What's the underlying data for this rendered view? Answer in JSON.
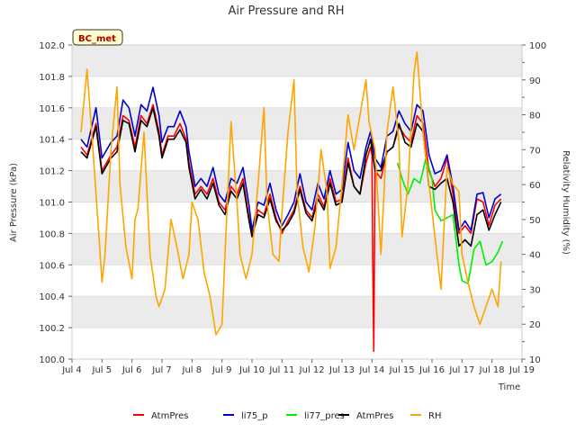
{
  "chart_data": {
    "type": "line",
    "title": "Air Pressure and RH",
    "xlabel": "Time",
    "ylabel": "Air Pressure (kPa)",
    "y2label": "Relativity Humidity (%)",
    "site_label": "BC_met",
    "x_ticks": [
      "Jul 4",
      "Jul 5",
      "Jul 6",
      "Jul 7",
      "Jul 8",
      "Jul 9",
      "Jul 10",
      "Jul 11",
      "Jul 12",
      "Jul 13",
      "Jul 14",
      "Jul 15",
      "Jul 16",
      "Jul 17",
      "Jul 18",
      "Jul 19"
    ],
    "xlim": [
      4,
      19
    ],
    "ylim": [
      100.0,
      102.0
    ],
    "y_ticks": [
      "100.0",
      "100.2",
      "100.4",
      "100.6",
      "100.8",
      "101.0",
      "101.2",
      "101.4",
      "101.6",
      "101.8",
      "102.0"
    ],
    "y2lim": [
      10,
      100
    ],
    "y2_ticks": [
      "10",
      "20",
      "30",
      "40",
      "50",
      "60",
      "70",
      "80",
      "90",
      "100"
    ],
    "grid": true,
    "legend_position": "bottom",
    "colors": {
      "AtmPres_red": "#ff0000",
      "li75_p": "#0000cc",
      "li77_pres": "#00ee00",
      "AtmPres_black": "#000000",
      "RH": "#ffa500",
      "band": "#ebebeb"
    },
    "series": [
      {
        "name": "AtmPres",
        "color": "#ff0000",
        "axis": "left",
        "x": [
          4.3,
          4.5,
          4.8,
          5.0,
          5.3,
          5.5,
          5.7,
          5.9,
          6.1,
          6.3,
          6.5,
          6.7,
          6.9,
          7.0,
          7.2,
          7.4,
          7.6,
          7.8,
          7.9,
          8.1,
          8.3,
          8.5,
          8.7,
          8.9,
          9.1,
          9.3,
          9.5,
          9.7,
          9.9,
          10.0,
          10.2,
          10.4,
          10.6,
          10.8,
          11.0,
          11.2,
          11.4,
          11.6,
          11.8,
          12.0,
          12.2,
          12.4,
          12.6,
          12.8,
          13.0,
          13.2,
          13.4,
          13.6,
          13.8,
          13.95,
          14.0,
          14.03,
          14.06,
          14.1,
          14.3,
          14.5,
          14.7,
          14.9,
          15.1,
          15.3,
          15.5,
          15.7,
          15.9,
          16.1,
          16.3,
          16.5,
          16.7,
          16.9,
          17.1,
          17.3,
          17.5,
          17.7,
          17.9,
          18.1,
          18.3
        ],
        "values": [
          101.35,
          101.3,
          101.5,
          101.2,
          101.3,
          101.35,
          101.55,
          101.52,
          101.35,
          101.55,
          101.5,
          101.62,
          101.45,
          101.3,
          101.42,
          101.42,
          101.5,
          101.4,
          101.25,
          101.05,
          101.1,
          101.05,
          101.15,
          101.0,
          100.95,
          101.1,
          101.05,
          101.15,
          100.9,
          100.8,
          100.95,
          100.92,
          101.05,
          100.9,
          100.8,
          100.88,
          100.95,
          101.1,
          100.95,
          100.9,
          101.05,
          100.97,
          101.15,
          101.0,
          101.02,
          101.28,
          101.1,
          101.05,
          101.25,
          101.35,
          101.3,
          100.55,
          100.05,
          101.2,
          101.15,
          101.32,
          101.35,
          101.48,
          101.42,
          101.38,
          101.55,
          101.5,
          101.2,
          101.1,
          101.15,
          101.28,
          101.05,
          100.8,
          100.85,
          100.8,
          101.02,
          101.0,
          100.85,
          100.98,
          101.02
        ]
      },
      {
        "name": "li75_p",
        "color": "#0000cc",
        "axis": "left",
        "x": [
          4.3,
          4.5,
          4.8,
          5.0,
          5.3,
          5.5,
          5.7,
          5.9,
          6.1,
          6.3,
          6.5,
          6.7,
          6.9,
          7.0,
          7.2,
          7.4,
          7.6,
          7.8,
          7.9,
          8.1,
          8.3,
          8.5,
          8.7,
          8.9,
          9.1,
          9.3,
          9.5,
          9.7,
          9.9,
          10.0,
          10.2,
          10.4,
          10.6,
          10.8,
          11.0,
          11.2,
          11.4,
          11.6,
          11.8,
          12.0,
          12.2,
          12.4,
          12.6,
          12.8,
          13.0,
          13.2,
          13.4,
          13.6,
          13.8,
          13.95,
          14.1,
          14.3,
          14.5,
          14.7,
          14.9,
          15.1,
          15.3,
          15.5,
          15.7,
          15.9,
          16.1,
          16.3,
          16.5,
          16.7,
          16.9,
          17.1,
          17.3,
          17.5,
          17.7,
          17.9,
          18.1,
          18.3
        ],
        "values": [
          101.4,
          101.35,
          101.6,
          101.28,
          101.38,
          101.42,
          101.65,
          101.6,
          101.42,
          101.62,
          101.58,
          101.73,
          101.55,
          101.38,
          101.48,
          101.48,
          101.58,
          101.48,
          101.32,
          101.1,
          101.15,
          101.1,
          101.22,
          101.05,
          101.0,
          101.15,
          101.12,
          101.22,
          100.98,
          100.82,
          101.0,
          100.98,
          101.12,
          100.95,
          100.85,
          100.92,
          101.0,
          101.18,
          101.0,
          100.95,
          101.12,
          101.02,
          101.2,
          101.05,
          101.08,
          101.38,
          101.2,
          101.15,
          101.35,
          101.45,
          101.28,
          101.22,
          101.42,
          101.45,
          101.58,
          101.5,
          101.45,
          101.62,
          101.58,
          101.3,
          101.18,
          101.2,
          101.3,
          101.1,
          100.82,
          100.88,
          100.82,
          101.05,
          101.06,
          100.9,
          101.02,
          101.05
        ]
      },
      {
        "name": "li77_pres",
        "color": "#00ee00",
        "axis": "left",
        "x": [
          14.85,
          15.0,
          15.2,
          15.4,
          15.6,
          15.8,
          16.0,
          16.1,
          16.3,
          16.5,
          16.7,
          16.9,
          17.0,
          17.2,
          17.4,
          17.6,
          17.8,
          18.0,
          18.2,
          18.35
        ],
        "values": [
          101.25,
          101.15,
          101.05,
          101.15,
          101.12,
          101.28,
          101.15,
          100.95,
          100.88,
          100.9,
          100.92,
          100.6,
          100.5,
          100.48,
          100.7,
          100.75,
          100.6,
          100.62,
          100.68,
          100.75
        ]
      },
      {
        "name": "AtmPres",
        "color": "#000000",
        "axis": "left",
        "x": [
          4.3,
          4.5,
          4.8,
          5.0,
          5.3,
          5.5,
          5.7,
          5.9,
          6.1,
          6.3,
          6.5,
          6.7,
          6.9,
          7.0,
          7.2,
          7.4,
          7.6,
          7.8,
          7.9,
          8.1,
          8.3,
          8.5,
          8.7,
          8.9,
          9.1,
          9.3,
          9.5,
          9.7,
          9.9,
          10.0,
          10.2,
          10.4,
          10.6,
          10.8,
          11.0,
          11.2,
          11.4,
          11.6,
          11.8,
          12.0,
          12.2,
          12.4,
          12.6,
          12.8,
          13.0,
          13.2,
          13.4,
          13.6,
          13.8,
          13.95,
          14.1,
          14.3,
          14.5,
          14.7,
          14.9,
          15.1,
          15.3,
          15.5,
          15.7,
          15.9,
          16.1,
          16.3,
          16.5,
          16.7,
          16.9,
          17.1,
          17.3,
          17.5,
          17.7,
          17.9,
          18.1,
          18.3
        ],
        "values": [
          101.32,
          101.28,
          101.48,
          101.18,
          101.28,
          101.32,
          101.52,
          101.5,
          101.32,
          101.52,
          101.48,
          101.6,
          101.42,
          101.28,
          101.4,
          101.4,
          101.46,
          101.38,
          101.22,
          101.02,
          101.08,
          101.02,
          101.12,
          100.98,
          100.92,
          101.07,
          101.02,
          101.12,
          100.88,
          100.78,
          100.92,
          100.9,
          101.02,
          100.88,
          100.82,
          100.86,
          100.93,
          101.08,
          100.93,
          100.88,
          101.02,
          100.95,
          101.12,
          100.98,
          101.0,
          101.25,
          101.1,
          101.05,
          101.3,
          101.4,
          101.2,
          101.2,
          101.32,
          101.35,
          101.5,
          101.38,
          101.35,
          101.5,
          101.45,
          101.1,
          101.08,
          101.12,
          101.15,
          101.0,
          100.72,
          100.76,
          100.72,
          100.92,
          100.95,
          100.82,
          100.92,
          101.0
        ]
      },
      {
        "name": "RH",
        "color": "#ffa500",
        "axis": "right",
        "x": [
          4.3,
          4.5,
          4.7,
          4.9,
          5.0,
          5.1,
          5.3,
          5.5,
          5.6,
          5.8,
          6.0,
          6.1,
          6.2,
          6.4,
          6.6,
          6.8,
          6.9,
          7.1,
          7.3,
          7.5,
          7.7,
          7.9,
          8.0,
          8.2,
          8.4,
          8.6,
          8.8,
          9.0,
          9.1,
          9.3,
          9.5,
          9.6,
          9.8,
          10.0,
          10.2,
          10.4,
          10.5,
          10.7,
          10.9,
          11.0,
          11.2,
          11.4,
          11.5,
          11.7,
          11.9,
          12.1,
          12.3,
          12.5,
          12.6,
          12.8,
          13.0,
          13.2,
          13.4,
          13.6,
          13.8,
          13.9,
          14.1,
          14.3,
          14.5,
          14.7,
          14.9,
          15.0,
          15.2,
          15.4,
          15.5,
          15.7,
          15.9,
          16.1,
          16.3,
          16.5,
          16.7,
          16.9,
          17.0,
          17.2,
          17.4,
          17.6,
          17.8,
          18.0,
          18.2,
          18.3
        ],
        "values": [
          75,
          93,
          70,
          45,
          32,
          40,
          70,
          88,
          60,
          42,
          33,
          50,
          53,
          75,
          40,
          28,
          25,
          30,
          50,
          42,
          33,
          40,
          55,
          50,
          35,
          28,
          17,
          20,
          40,
          78,
          55,
          40,
          33,
          40,
          60,
          82,
          55,
          40,
          38,
          52,
          75,
          90,
          58,
          42,
          35,
          48,
          70,
          58,
          36,
          42,
          60,
          80,
          70,
          80,
          90,
          78,
          70,
          40,
          75,
          88,
          72,
          45,
          60,
          92,
          98,
          75,
          60,
          45,
          30,
          65,
          60,
          58,
          40,
          32,
          25,
          20,
          25,
          30,
          25,
          38
        ]
      }
    ]
  },
  "legend": {
    "items": [
      {
        "label": "AtmPres",
        "color": "#ff0000"
      },
      {
        "label": "li75_p",
        "color": "#0000cc"
      },
      {
        "label": "li77_pres",
        "color": "#00ee00"
      },
      {
        "label": "AtmPres",
        "color": "#000000"
      },
      {
        "label": "RH",
        "color": "#ffa500"
      }
    ]
  }
}
